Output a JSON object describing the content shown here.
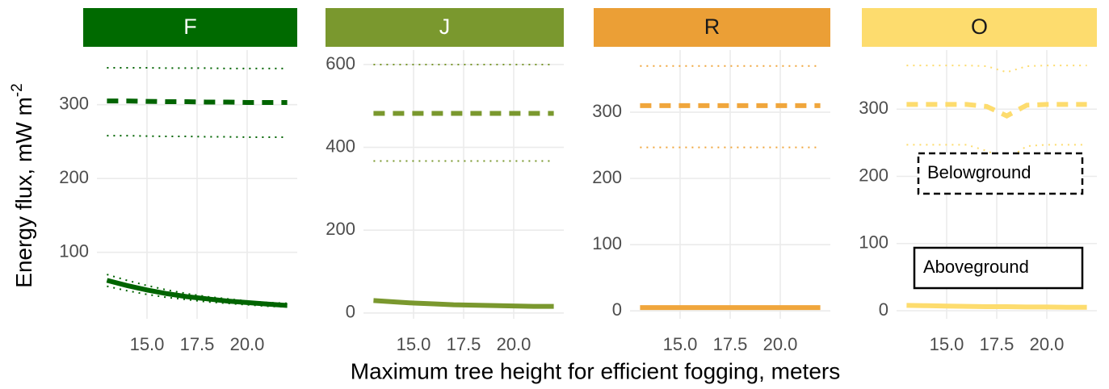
{
  "axis_titles": {
    "x": "Maximum tree height for efficient fogging, meters",
    "y": {
      "text": "Energy flux, mW m",
      "superscript": "-2"
    }
  },
  "chart_data": [
    {
      "type": "line",
      "title": "F",
      "strip_color": "#006a00",
      "strip_text_color": "#ffffff",
      "x": [
        13,
        14,
        15,
        16,
        17,
        18,
        19,
        20,
        21,
        22
      ],
      "xlim": [
        12.5,
        22.5
      ],
      "xticks": [
        {
          "value": 15,
          "label": "15.0"
        },
        {
          "value": 17.5,
          "label": "17.5"
        },
        {
          "value": 20,
          "label": "20.0"
        }
      ],
      "ylim": [
        10,
        374
      ],
      "yticks": [
        100,
        200,
        300
      ],
      "grid": true,
      "series": [
        {
          "color": "#006400",
          "linetype": "dotted",
          "values": [
            350,
            350,
            350,
            349.5,
            349.5,
            349.5,
            349,
            349,
            349,
            349
          ]
        },
        {
          "color": "#006400",
          "linetype": "dashed",
          "values": [
            305,
            305,
            304.5,
            304,
            304,
            303.5,
            303.5,
            303,
            303,
            303
          ]
        },
        {
          "color": "#006400",
          "linetype": "dotted",
          "values": [
            258,
            258,
            257.5,
            257,
            257,
            256.5,
            256.5,
            256,
            256,
            256
          ]
        },
        {
          "color": "#006400",
          "linetype": "dotted",
          "values": [
            70,
            62,
            55,
            49,
            44,
            40,
            37,
            34,
            32,
            31
          ]
        },
        {
          "color": "#006400",
          "linetype": "solid",
          "values": [
            62,
            55,
            49,
            44,
            40,
            37,
            34,
            32,
            30,
            28
          ]
        },
        {
          "color": "#006400",
          "linetype": "dotted",
          "values": [
            54,
            48,
            43,
            39,
            36,
            33,
            31,
            29,
            27,
            26
          ]
        }
      ]
    },
    {
      "type": "line",
      "title": "J",
      "strip_color": "#7a982e",
      "strip_text_color": "#ffffff",
      "x": [
        13,
        14,
        15,
        16,
        17,
        18,
        19,
        20,
        21,
        22
      ],
      "xlim": [
        12.5,
        22.5
      ],
      "xticks": [
        {
          "value": 15,
          "label": "15.0"
        },
        {
          "value": 17.5,
          "label": "17.5"
        },
        {
          "value": 20,
          "label": "20.0"
        }
      ],
      "ylim": [
        -14,
        635
      ],
      "yticks": [
        0,
        200,
        400,
        600
      ],
      "grid": true,
      "series": [
        {
          "color": "#7a982e",
          "linetype": "dotted",
          "values": [
            600,
            600,
            600,
            600,
            600,
            600,
            600,
            600,
            600,
            600
          ]
        },
        {
          "color": "#7a982e",
          "linetype": "dashed",
          "values": [
            482,
            482,
            482,
            482,
            482,
            482,
            482,
            482,
            482,
            482
          ]
        },
        {
          "color": "#7a982e",
          "linetype": "dotted",
          "values": [
            367,
            367,
            367,
            367,
            367,
            367,
            367,
            367,
            367,
            367
          ]
        },
        {
          "color": "#7a982e",
          "linetype": "solid",
          "values": [
            30,
            27,
            24,
            22,
            20,
            19,
            18,
            17,
            16,
            16
          ]
        }
      ]
    },
    {
      "type": "line",
      "title": "R",
      "strip_color": "#eb9f36",
      "strip_text_color": "#1a1a1a",
      "x": [
        13,
        14,
        15,
        16,
        17,
        18,
        19,
        20,
        21,
        22
      ],
      "xlim": [
        12.5,
        22.5
      ],
      "xticks": [
        {
          "value": 15,
          "label": "15.0"
        },
        {
          "value": 17.5,
          "label": "17.5"
        },
        {
          "value": 20,
          "label": "20.0"
        }
      ],
      "ylim": [
        -12,
        394
      ],
      "yticks": [
        0,
        100,
        200,
        300
      ],
      "grid": true,
      "series": [
        {
          "color": "#f0a63c",
          "linetype": "dotted",
          "values": [
            370,
            370,
            370,
            370,
            370,
            370,
            370,
            370,
            370,
            370
          ]
        },
        {
          "color": "#f0a63c",
          "linetype": "dashed",
          "values": [
            310,
            310,
            310,
            310,
            310,
            310,
            310,
            310,
            310,
            310
          ]
        },
        {
          "color": "#f0a63c",
          "linetype": "dotted",
          "values": [
            247,
            247,
            247,
            247,
            247,
            247,
            247,
            247,
            247,
            247
          ]
        },
        {
          "color": "#f0a63c",
          "linetype": "solid",
          "values": [
            5,
            5,
            5,
            5,
            5,
            5,
            5,
            5,
            5,
            5
          ]
        }
      ]
    },
    {
      "type": "line",
      "title": "O",
      "strip_color": "#fddc6e",
      "strip_text_color": "#1a1a1a",
      "x": [
        13,
        14,
        15,
        16,
        17,
        18,
        19,
        20,
        21,
        22
      ],
      "xlim": [
        12.5,
        22.5
      ],
      "xticks": [
        {
          "value": 15,
          "label": "15.0"
        },
        {
          "value": 17.5,
          "label": "17.5"
        },
        {
          "value": 20,
          "label": "20.0"
        }
      ],
      "ylim": [
        -12,
        388
      ],
      "yticks": [
        0,
        100,
        200,
        300
      ],
      "grid": true,
      "series": [
        {
          "color": "#fddc6e",
          "linetype": "dotted",
          "values": [
            365,
            365,
            365,
            365,
            364,
            355,
            364,
            365,
            365,
            365
          ]
        },
        {
          "color": "#fddc6e",
          "linetype": "dashed",
          "values": [
            307,
            307,
            307,
            307,
            304,
            290,
            306,
            307,
            307,
            307
          ]
        },
        {
          "color": "#fddc6e",
          "linetype": "dotted",
          "values": [
            247,
            247,
            247,
            247,
            238,
            225,
            245,
            247,
            247,
            247
          ]
        },
        {
          "color": "#fddc6e",
          "linetype": "solid",
          "values": [
            8,
            7.5,
            7,
            6.5,
            6,
            6,
            5.5,
            5.5,
            5,
            5
          ]
        }
      ],
      "legend": [
        {
          "label": "Belowground",
          "linetype": "dashed"
        },
        {
          "label": "Aboveground",
          "linetype": "solid"
        }
      ]
    }
  ]
}
